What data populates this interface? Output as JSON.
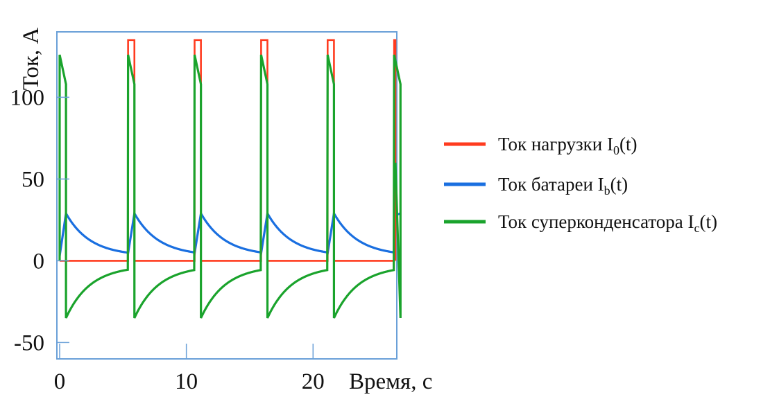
{
  "chart_data": {
    "type": "line",
    "title": "",
    "xlabel": "Время, с",
    "ylabel": "Ток, А",
    "xlim": [
      0,
      26.5
    ],
    "ylim": [
      -60,
      140
    ],
    "xticks": [
      0,
      10,
      20
    ],
    "yticks": [
      -50,
      0,
      50,
      100
    ],
    "grid": false,
    "legend_position": "right",
    "period": 5.25,
    "pulse_start": 5.4,
    "pulse_width": 0.5,
    "series": [
      {
        "name": "Ток нагрузки I",
        "name_sub": "0",
        "name_suffix": "(t)",
        "color": "#ff3b1f",
        "baseline": 0,
        "pulse_level": 135
      },
      {
        "name": "Ток батареи I",
        "name_sub": "b",
        "name_suffix": "(t)",
        "color": "#1a6fe0",
        "peak": 29,
        "min": 3,
        "decay_tau": 1.9
      },
      {
        "name": "Ток суперконденсатора I",
        "name_sub": "c",
        "name_suffix": "(t)",
        "color": "#1aa32c",
        "pulse_start_value": 126,
        "pulse_end_value": 108,
        "min": -35,
        "recover_to": -3,
        "decay_tau": 1.9
      }
    ]
  }
}
